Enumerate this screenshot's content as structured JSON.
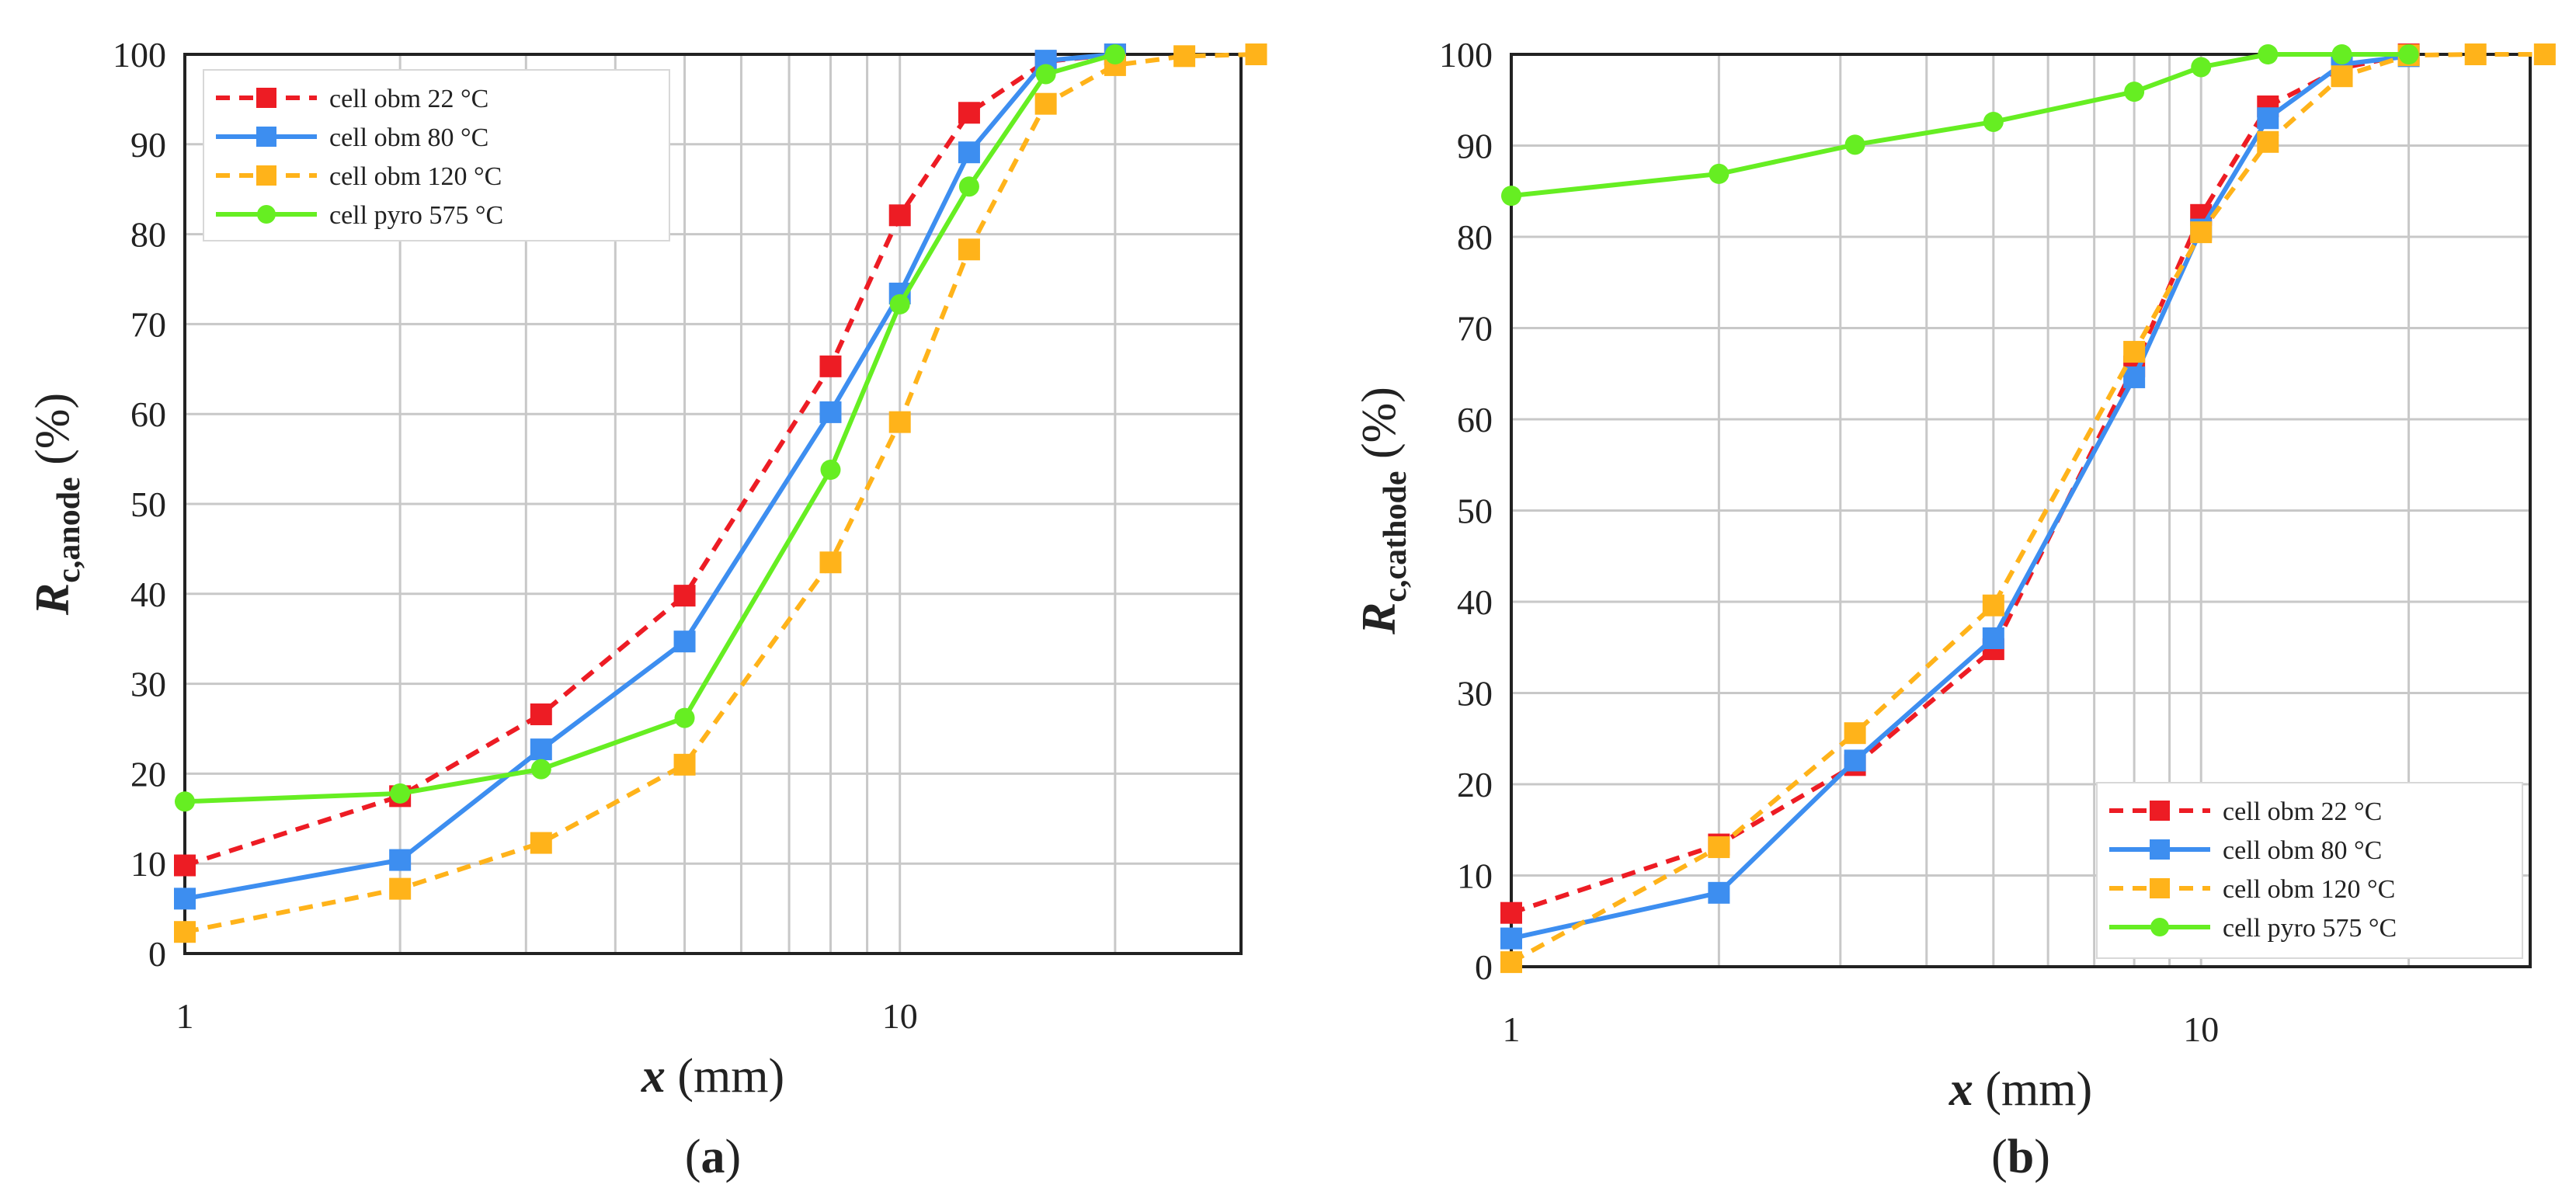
{
  "chart_data": [
    {
      "type": "line",
      "panel_label": "(a)",
      "xlabel": "x (mm)",
      "ylabel_main": "R",
      "ylabel_sub": "c,anode",
      "ylabel_unit": " (%)",
      "xscale": "log",
      "xlim": [
        1,
        30
      ],
      "ylim": [
        0,
        100
      ],
      "yticks": [
        0,
        10,
        20,
        30,
        40,
        50,
        60,
        70,
        80,
        90,
        100
      ],
      "xticks": [
        1,
        10
      ],
      "grid": true,
      "legend_position": "top-left",
      "series": [
        {
          "name": "cell obm 22 °C",
          "color": "#ed1c24",
          "dash": true,
          "marker": "square",
          "x": [
            1,
            2,
            3.15,
            5,
            8,
            10,
            12.5,
            16,
            20
          ],
          "y": [
            9.8,
            17.5,
            26.6,
            39.8,
            65.3,
            82.1,
            93.5,
            99.2,
            100
          ]
        },
        {
          "name": "cell obm 80 °C",
          "color": "#3d8ef0",
          "dash": false,
          "marker": "square",
          "x": [
            1,
            2,
            3.15,
            5,
            8,
            10,
            12.5,
            16,
            20
          ],
          "y": [
            6.1,
            10.4,
            22.7,
            34.7,
            60.2,
            73.4,
            89.1,
            99.3,
            100
          ]
        },
        {
          "name": "cell obm 120 °C",
          "color": "#ffb31a",
          "dash": true,
          "marker": "square",
          "x": [
            1,
            2,
            3.15,
            5,
            8,
            10,
            12.5,
            16,
            20,
            25,
            31.5
          ],
          "y": [
            2.4,
            7.2,
            12.3,
            21.0,
            43.5,
            59.1,
            78.3,
            94.5,
            98.8,
            99.8,
            100
          ]
        },
        {
          "name": "cell pyro 575 °C",
          "color": "#66ee22",
          "dash": false,
          "marker": "circle",
          "x": [
            1,
            2,
            3.15,
            5,
            8,
            10,
            12.5,
            16,
            20
          ],
          "y": [
            16.9,
            17.8,
            20.5,
            26.2,
            53.8,
            72.2,
            85.3,
            97.8,
            100
          ]
        }
      ]
    },
    {
      "type": "line",
      "panel_label": "(b)",
      "xlabel": "x (mm)",
      "ylabel_main": "R",
      "ylabel_sub": "c,cathode",
      "ylabel_unit": " (%)",
      "xscale": "log",
      "xlim": [
        1,
        30
      ],
      "ylim": [
        0,
        100
      ],
      "yticks": [
        0,
        10,
        20,
        30,
        40,
        50,
        60,
        70,
        80,
        90,
        100
      ],
      "xticks": [
        1,
        10
      ],
      "grid": true,
      "legend_position": "bottom-right",
      "series": [
        {
          "name": "cell obm 22 °C",
          "color": "#ed1c24",
          "dash": true,
          "marker": "square",
          "x": [
            1,
            2,
            3.15,
            5,
            8,
            10,
            12.5,
            16,
            20
          ],
          "y": [
            5.9,
            13.4,
            22.1,
            34.8,
            65.8,
            82.4,
            94.3,
            98.5,
            100
          ]
        },
        {
          "name": "cell obm 80 °C",
          "color": "#3d8ef0",
          "dash": false,
          "marker": "square",
          "x": [
            1,
            2,
            3.15,
            5,
            8,
            10,
            12.5,
            16,
            20
          ],
          "y": [
            3.1,
            8.1,
            22.6,
            36.0,
            64.6,
            80.8,
            93.0,
            98.9,
            99.8
          ]
        },
        {
          "name": "cell obm 120 °C",
          "color": "#ffb31a",
          "dash": true,
          "marker": "square",
          "x": [
            1,
            2,
            3.15,
            5,
            8,
            10,
            12.5,
            16,
            20,
            25,
            31.5
          ],
          "y": [
            0.5,
            13.1,
            25.6,
            39.6,
            67.4,
            80.5,
            90.4,
            97.6,
            99.9,
            100,
            100
          ]
        },
        {
          "name": "cell pyro 575 °C",
          "color": "#66ee22",
          "dash": false,
          "marker": "circle",
          "x": [
            1,
            2,
            3.15,
            5,
            8,
            10,
            12.5,
            16,
            20
          ],
          "y": [
            84.5,
            86.9,
            90.1,
            92.6,
            95.9,
            98.6,
            100,
            100,
            100
          ]
        }
      ]
    }
  ]
}
